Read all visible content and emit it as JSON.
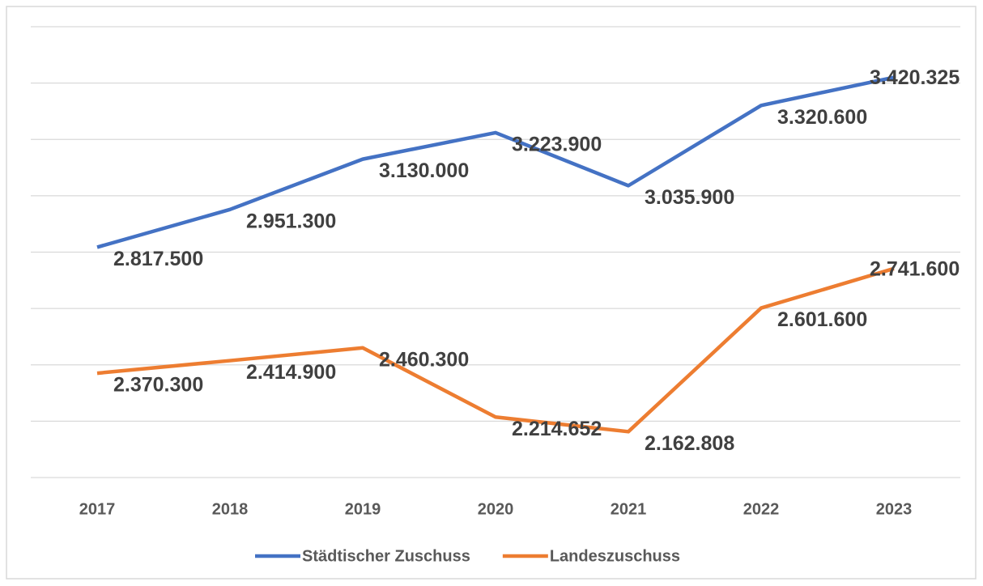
{
  "chart_data": {
    "type": "line",
    "categories": [
      "2017",
      "2018",
      "2019",
      "2020",
      "2021",
      "2022",
      "2023"
    ],
    "series": [
      {
        "name": "Städtischer Zuschuss",
        "color": "#4472c4",
        "values": [
          2817500,
          2951300,
          3130000,
          3223900,
          3035900,
          3320600,
          3420325
        ],
        "value_labels": [
          "2.817.500",
          "2.951.300",
          "3.130.000",
          "3.223.900",
          "3.035.900",
          "3.320.600",
          "3.420.325"
        ]
      },
      {
        "name": "Landeszuschuss",
        "color": "#ed7d31",
        "values": [
          2370300,
          2414900,
          2460300,
          2214652,
          2162808,
          2601600,
          2741600
        ],
        "value_labels": [
          "2.370.300",
          "2.414.900",
          "2.460.300",
          "2.214.652",
          "2.162.808",
          "2.601.600",
          "2.741.600"
        ]
      }
    ],
    "ylim": [
      2000000,
      3600000
    ],
    "yticks": [
      2000000,
      2200000,
      2400000,
      2600000,
      2800000,
      3000000,
      3200000,
      3400000,
      3600000
    ],
    "grid": true,
    "legend": "bottom"
  }
}
